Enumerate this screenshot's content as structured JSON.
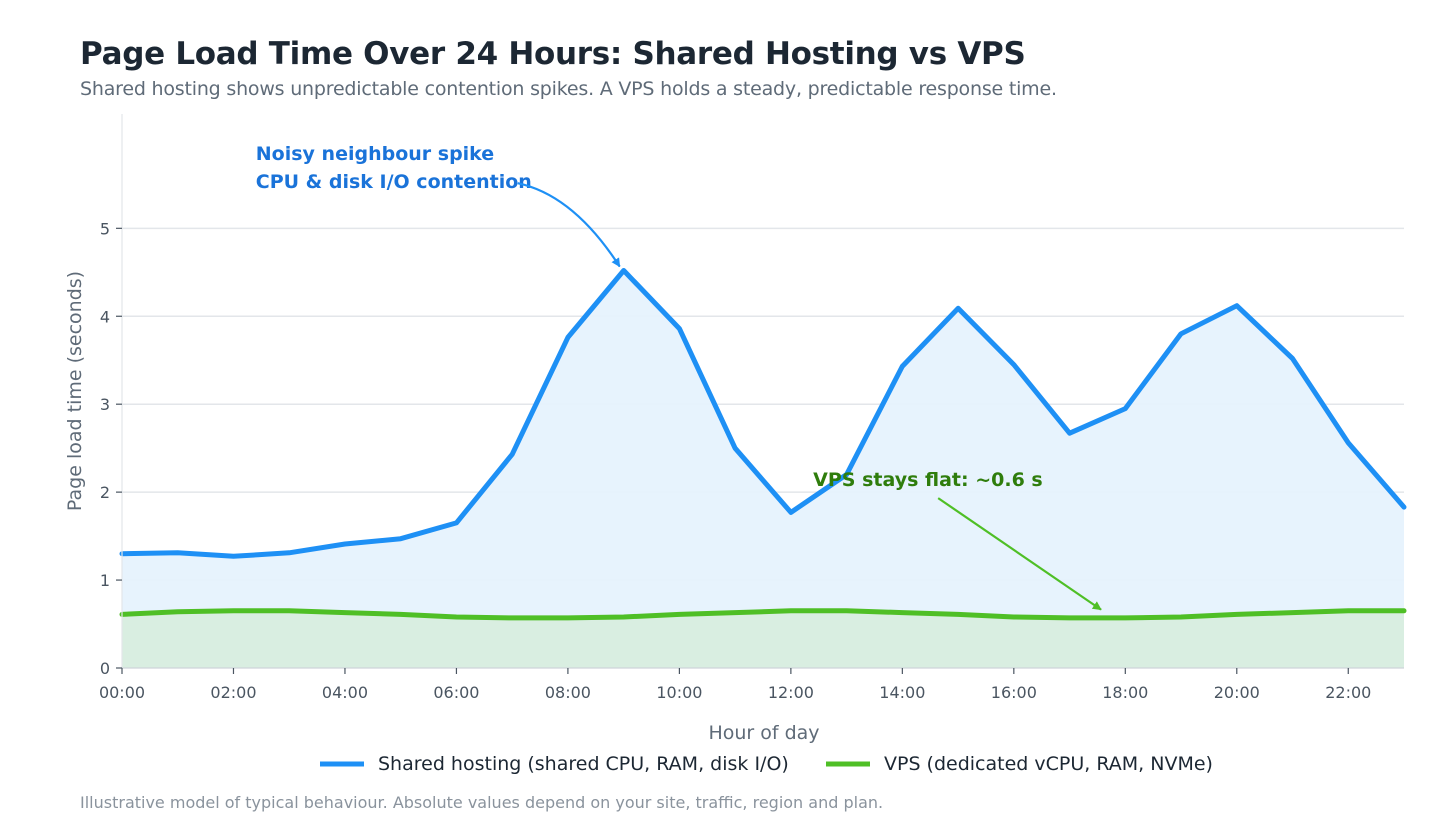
{
  "title": "Page Load Time Over 24 Hours: Shared Hosting vs VPS",
  "subtitle": "Shared hosting shows unpredictable contention spikes. A VPS holds a steady, predictable response time.",
  "footnote": "Illustrative model of typical behaviour. Absolute values depend on your site, traffic, region and plan.",
  "colors": {
    "shared": "#1e90f5",
    "shared_fill": "#e6f2fd",
    "vps": "#4fbf26",
    "vps_fill": "#d6ecdc",
    "annot_shared": "#1a73d9",
    "annot_vps": "#2f7d0c",
    "grid": "#e3e6ea"
  },
  "chart_data": {
    "type": "line",
    "xlabel": "Hour of day",
    "ylabel": "Page load time (seconds)",
    "ylim": [
      0,
      6.3
    ],
    "xlim": [
      0,
      23
    ],
    "grid": true,
    "legend_placement": "bottom-center",
    "x": [
      0,
      1,
      2,
      3,
      4,
      5,
      6,
      7,
      8,
      9,
      10,
      11,
      12,
      13,
      14,
      15,
      16,
      17,
      18,
      19,
      20,
      21,
      22,
      23
    ],
    "x_ticks": [
      0,
      2,
      4,
      6,
      8,
      10,
      12,
      14,
      16,
      18,
      20,
      22
    ],
    "x_tick_labels": [
      "00:00",
      "02:00",
      "04:00",
      "06:00",
      "08:00",
      "10:00",
      "12:00",
      "14:00",
      "16:00",
      "18:00",
      "20:00",
      "22:00"
    ],
    "y_ticks": [
      0,
      1,
      2,
      3,
      4,
      5
    ],
    "y_tick_labels": [
      "0",
      "1",
      "2",
      "3",
      "4",
      "5"
    ],
    "series": [
      {
        "name": "Shared hosting (shared CPU, RAM, disk I/O)",
        "values": [
          1.3,
          1.31,
          1.27,
          1.31,
          1.41,
          1.47,
          1.65,
          2.43,
          3.76,
          4.52,
          3.86,
          2.5,
          1.77,
          2.2,
          3.43,
          4.09,
          3.45,
          2.67,
          2.95,
          3.8,
          4.12,
          3.52,
          2.56,
          1.83
        ]
      },
      {
        "name": "VPS (dedicated vCPU, RAM, NVMe)",
        "values": [
          0.61,
          0.64,
          0.65,
          0.65,
          0.63,
          0.61,
          0.58,
          0.57,
          0.57,
          0.58,
          0.61,
          0.63,
          0.65,
          0.65,
          0.63,
          0.61,
          0.58,
          0.57,
          0.57,
          0.58,
          0.61,
          0.63,
          0.65,
          0.65
        ]
      }
    ],
    "annotations": [
      {
        "lines": [
          "Noisy neighbour spike",
          "CPU & disk I/O contention"
        ],
        "point": [
          9,
          4.52
        ],
        "text_at": [
          2.4,
          5.4
        ],
        "series": 0
      },
      {
        "lines": [
          "VPS stays flat: ~0.6 s"
        ],
        "point": [
          17.6,
          0.63
        ],
        "text_at": [
          12.4,
          2.0
        ],
        "series": 1
      }
    ]
  }
}
